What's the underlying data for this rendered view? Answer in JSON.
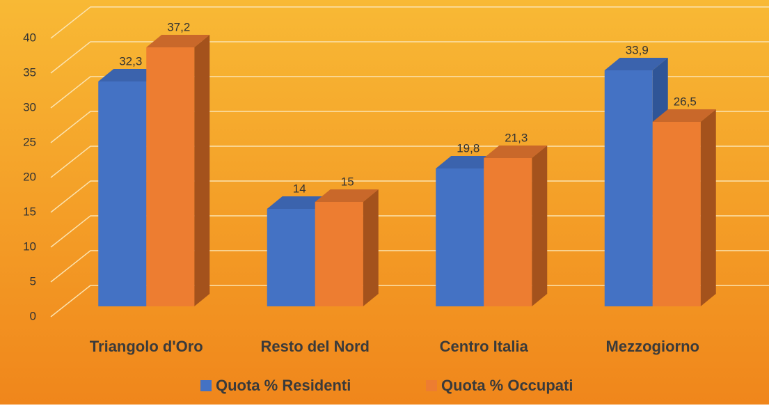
{
  "chart_data": {
    "type": "bar3d",
    "categories": [
      "Triangolo d'Oro",
      "Resto del Nord",
      "Centro Italia",
      "Mezzogiorno"
    ],
    "series": [
      {
        "name": "Quota % Residenti",
        "color": "#4472c4",
        "side": "#2f5597",
        "top": "#3b63ad",
        "values": [
          32.3,
          14,
          19.8,
          33.9
        ],
        "value_labels": [
          "32,3",
          "14",
          "19,8",
          "33,9"
        ]
      },
      {
        "name": "Quota % Occupati",
        "color": "#ed7d31",
        "side": "#a4521c",
        "top": "#c9682a",
        "values": [
          37.2,
          15,
          21.3,
          26.5
        ],
        "value_labels": [
          "37,2",
          "15",
          "21,3",
          "26,5"
        ]
      }
    ],
    "ylim": [
      0,
      40
    ],
    "yticks": [
      0,
      5,
      10,
      15,
      20,
      25,
      30,
      35,
      40
    ],
    "grid": true,
    "legend": "bottom"
  }
}
